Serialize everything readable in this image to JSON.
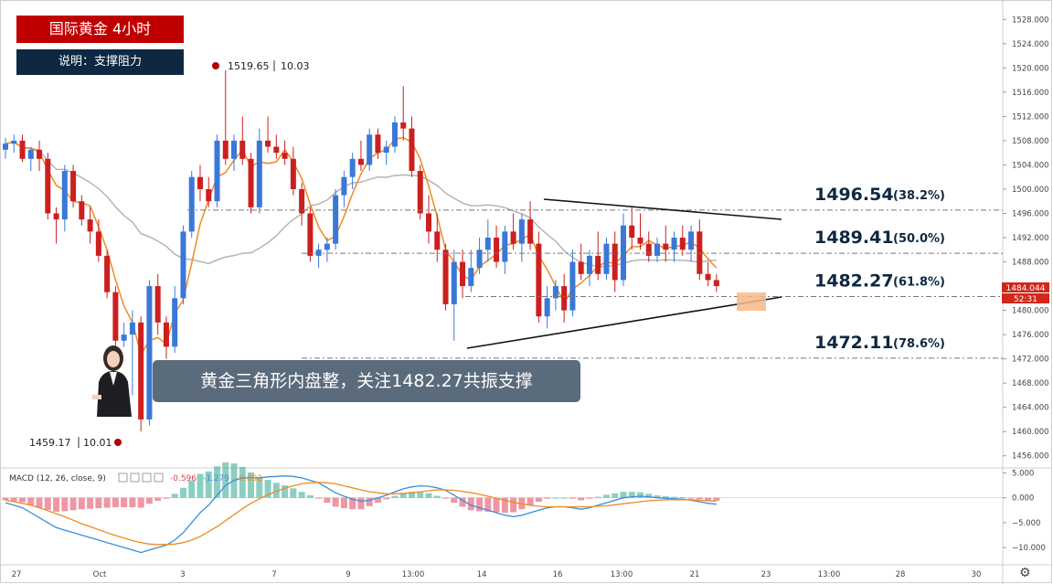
{
  "header": {
    "title": "国际黄金 4小时",
    "subtitle": "说明：支撑阻力"
  },
  "caption": "黄金三角形内盘整，关注1482.27共振支撑",
  "annotations": {
    "high_label": "1519.65",
    "high_extra": "10.03",
    "low_label": "1459.17",
    "low_extra": "10.01"
  },
  "price_axis": {
    "ticks": [
      "1528.000",
      "1524.000",
      "1520.000",
      "1516.000",
      "1512.000",
      "1508.000",
      "1504.000",
      "1500.000",
      "1496.000",
      "1492.000",
      "1488.000",
      "1484.000",
      "1480.000",
      "1476.000",
      "1472.000",
      "1468.000",
      "1464.000",
      "1460.000",
      "1456.000"
    ],
    "current_price": "1484.044",
    "countdown": "52:31"
  },
  "macd_axis": {
    "ticks": [
      "5.000",
      "0.000",
      "−5.000",
      "−10.000"
    ]
  },
  "macd_legend": {
    "label": "MACD (12, 26, close, 9)",
    "v1": "-0.596",
    "v2": "-1.279",
    "v3": "-0.692"
  },
  "time_axis": {
    "ticks": [
      "27",
      "Oct",
      "3",
      "7",
      "9",
      "13:00",
      "14",
      "16",
      "13:00",
      "21",
      "23",
      "13:00",
      "28",
      "30"
    ]
  },
  "fib_levels": [
    {
      "price": "1496.54",
      "pct": "(38.2%)"
    },
    {
      "price": "1489.41",
      "pct": "(50.0%)"
    },
    {
      "price": "1482.27",
      "pct": "(61.8%)"
    },
    {
      "price": "1472.11",
      "pct": "(78.6%)"
    }
  ],
  "colors": {
    "up": "#3a78d8",
    "down": "#cc1f1f",
    "ma_fast": "#f08a24",
    "ma_slow": "#b5b5b5",
    "macd_line": "#3a8fd8",
    "signal_line": "#f08a24",
    "hist_pos": "#2fa58f",
    "hist_neg": "#e0405a",
    "title_bg": "#c00000",
    "subtitle_bg": "#0e2841"
  },
  "chart_data": {
    "type": "candlestick",
    "title": "国际黄金 4小时",
    "ylim": [
      1454,
      1530
    ],
    "macd_ylim": [
      -12,
      6
    ],
    "candles": [
      [
        1506.5,
        1508.5,
        1505,
        1507.5
      ],
      [
        1507.5,
        1509,
        1506,
        1508
      ],
      [
        1508,
        1509,
        1504.5,
        1505
      ],
      [
        1505,
        1507,
        1503,
        1506.5
      ],
      [
        1506.5,
        1508,
        1503,
        1505
      ],
      [
        1505,
        1506,
        1495,
        1496
      ],
      [
        1496,
        1497,
        1491,
        1495
      ],
      [
        1495,
        1504,
        1493,
        1503
      ],
      [
        1503,
        1504,
        1497,
        1498
      ],
      [
        1498,
        1499,
        1494,
        1495
      ],
      [
        1495,
        1497,
        1491,
        1493
      ],
      [
        1493,
        1495,
        1488,
        1489
      ],
      [
        1489,
        1490,
        1482,
        1483
      ],
      [
        1483,
        1484,
        1474,
        1475
      ],
      [
        1475,
        1478,
        1474,
        1476
      ],
      [
        1476,
        1480,
        1466,
        1478
      ],
      [
        1478,
        1479,
        1460,
        1462
      ],
      [
        1462,
        1485,
        1461,
        1484
      ],
      [
        1484,
        1486,
        1476,
        1478
      ],
      [
        1478,
        1479,
        1472,
        1474
      ],
      [
        1474,
        1484,
        1473,
        1482
      ],
      [
        1482,
        1494,
        1481,
        1493
      ],
      [
        1493,
        1503,
        1492,
        1502
      ],
      [
        1502,
        1504,
        1498,
        1500
      ],
      [
        1500,
        1502,
        1497,
        1498
      ],
      [
        1498,
        1509,
        1497,
        1508
      ],
      [
        1508,
        1519.6,
        1504,
        1505
      ],
      [
        1505,
        1509,
        1503,
        1508
      ],
      [
        1508,
        1512,
        1504,
        1505
      ],
      [
        1505,
        1506,
        1496,
        1497
      ],
      [
        1497,
        1510,
        1496,
        1508
      ],
      [
        1508,
        1512,
        1506,
        1507
      ],
      [
        1507,
        1509,
        1505,
        1506
      ],
      [
        1506,
        1508,
        1504,
        1505
      ],
      [
        1505,
        1507,
        1499,
        1500
      ],
      [
        1500,
        1501,
        1494,
        1496
      ],
      [
        1496,
        1497,
        1488,
        1489
      ],
      [
        1489,
        1491,
        1487,
        1490
      ],
      [
        1490,
        1492,
        1488,
        1491
      ],
      [
        1491,
        1500,
        1490,
        1499
      ],
      [
        1499,
        1503,
        1497,
        1502
      ],
      [
        1502,
        1506,
        1500,
        1505
      ],
      [
        1505,
        1508,
        1503,
        1504
      ],
      [
        1504,
        1510,
        1503,
        1509
      ],
      [
        1509,
        1510,
        1505,
        1506
      ],
      [
        1506,
        1508,
        1504,
        1507
      ],
      [
        1507,
        1512,
        1506,
        1511
      ],
      [
        1511,
        1517,
        1508,
        1510
      ],
      [
        1510,
        1512,
        1502,
        1503
      ],
      [
        1503,
        1504,
        1495,
        1496
      ],
      [
        1496,
        1499,
        1491,
        1493
      ],
      [
        1493,
        1496,
        1488,
        1490
      ],
      [
        1490,
        1491,
        1480,
        1481
      ],
      [
        1481,
        1490,
        1475,
        1488
      ],
      [
        1488,
        1490,
        1482,
        1484
      ],
      [
        1484,
        1490,
        1483,
        1487
      ],
      [
        1487,
        1492,
        1486,
        1490
      ],
      [
        1490,
        1495,
        1488,
        1492
      ],
      [
        1492,
        1494,
        1487,
        1488
      ],
      [
        1488,
        1494,
        1486,
        1493
      ],
      [
        1493,
        1496,
        1490,
        1491
      ],
      [
        1491,
        1496,
        1488,
        1495
      ],
      [
        1495,
        1498,
        1490,
        1491
      ],
      [
        1491,
        1493,
        1478,
        1479
      ],
      [
        1479,
        1484,
        1477,
        1482
      ],
      [
        1482,
        1485,
        1480,
        1484
      ],
      [
        1484,
        1486,
        1478,
        1480
      ],
      [
        1480,
        1490,
        1479,
        1488
      ],
      [
        1488,
        1491,
        1485,
        1486
      ],
      [
        1486,
        1490,
        1484,
        1489
      ],
      [
        1489,
        1493,
        1485,
        1486
      ],
      [
        1486,
        1492,
        1485,
        1491
      ],
      [
        1491,
        1493,
        1483,
        1485
      ],
      [
        1485,
        1496,
        1484,
        1494
      ],
      [
        1494,
        1497,
        1490,
        1492
      ],
      [
        1492,
        1496,
        1490,
        1491
      ],
      [
        1491,
        1493,
        1488,
        1489
      ],
      [
        1489,
        1492,
        1488,
        1491
      ],
      [
        1491,
        1494,
        1488,
        1490
      ],
      [
        1490,
        1493,
        1488,
        1492
      ],
      [
        1492,
        1494,
        1489,
        1490
      ],
      [
        1490,
        1494,
        1488,
        1493
      ],
      [
        1493,
        1495,
        1485,
        1486
      ],
      [
        1486,
        1488,
        1484,
        1485
      ],
      [
        1485,
        1486,
        1483,
        1484
      ]
    ],
    "macd": [
      [
        -1,
        -0.5
      ],
      [
        -1.5,
        -0.8
      ],
      [
        -2,
        -1.1
      ],
      [
        -3,
        -1.5
      ],
      [
        -4,
        -2
      ],
      [
        -5,
        -2.6
      ],
      [
        -6,
        -3.2
      ],
      [
        -6.5,
        -3.8
      ],
      [
        -7,
        -4.5
      ],
      [
        -7.5,
        -5.2
      ],
      [
        -8,
        -5.8
      ],
      [
        -8.5,
        -6.4
      ],
      [
        -9,
        -7
      ],
      [
        -9.5,
        -7.6
      ],
      [
        -10,
        -8.1
      ],
      [
        -10.5,
        -8.6
      ],
      [
        -11,
        -9
      ],
      [
        -10.5,
        -9.3
      ],
      [
        -10,
        -9.4
      ],
      [
        -9.5,
        -9.4
      ],
      [
        -8.5,
        -9.3
      ],
      [
        -7,
        -9
      ],
      [
        -5,
        -8.5
      ],
      [
        -3,
        -7.8
      ],
      [
        -1.5,
        -6.8
      ],
      [
        0.5,
        -5.8
      ],
      [
        2.5,
        -4.6
      ],
      [
        3.5,
        -3.4
      ],
      [
        4,
        -2.2
      ],
      [
        4,
        -1.1
      ],
      [
        4,
        -0.2
      ],
      [
        4.2,
        0.6
      ],
      [
        4.3,
        1.3
      ],
      [
        4.4,
        1.9
      ],
      [
        4.3,
        2.4
      ],
      [
        4,
        2.8
      ],
      [
        3.5,
        3
      ],
      [
        3,
        3.1
      ],
      [
        2,
        3
      ],
      [
        1,
        2.8
      ],
      [
        0.3,
        2.4
      ],
      [
        -0.3,
        2
      ],
      [
        -0.7,
        1.6
      ],
      [
        -0.5,
        1.2
      ],
      [
        0,
        1
      ],
      [
        0.5,
        0.8
      ],
      [
        1.2,
        0.8
      ],
      [
        1.8,
        0.9
      ],
      [
        2.2,
        1
      ],
      [
        2.4,
        1.2
      ],
      [
        2.3,
        1.4
      ],
      [
        2,
        1.6
      ],
      [
        1.5,
        1.6
      ],
      [
        0.5,
        1.5
      ],
      [
        -0.5,
        1.3
      ],
      [
        -1.5,
        1
      ],
      [
        -2,
        0.7
      ],
      [
        -2.5,
        0.3
      ],
      [
        -3,
        -0.1
      ],
      [
        -3.5,
        -0.5
      ],
      [
        -3.8,
        -0.9
      ],
      [
        -3.5,
        -1.2
      ],
      [
        -3,
        -1.5
      ],
      [
        -2.5,
        -1.7
      ],
      [
        -2,
        -1.8
      ],
      [
        -1.8,
        -1.8
      ],
      [
        -1.8,
        -1.8
      ],
      [
        -2,
        -1.8
      ],
      [
        -2.3,
        -1.8
      ],
      [
        -2,
        -1.8
      ],
      [
        -1.5,
        -1.7
      ],
      [
        -1,
        -1.6
      ],
      [
        -0.5,
        -1.4
      ],
      [
        0,
        -1.2
      ],
      [
        0.2,
        -1
      ],
      [
        0.3,
        -0.8
      ],
      [
        0.2,
        -0.6
      ],
      [
        0,
        -0.5
      ],
      [
        -0.1,
        -0.4
      ],
      [
        -0.2,
        -0.4
      ],
      [
        -0.3,
        -0.4
      ],
      [
        -0.5,
        -0.4
      ],
      [
        -0.8,
        -0.5
      ],
      [
        -1.1,
        -0.6
      ],
      [
        -1.3,
        -0.7
      ]
    ]
  }
}
